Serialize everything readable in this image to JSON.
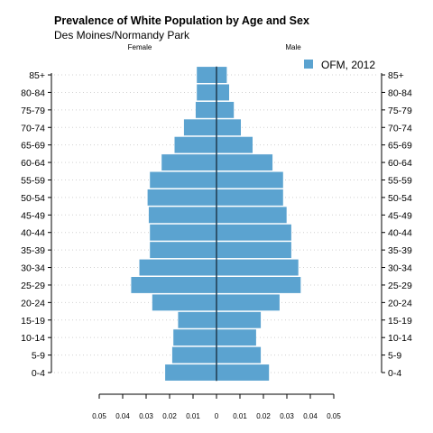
{
  "chart_data": {
    "type": "bar",
    "orientation": "horizontal-population-pyramid",
    "title": "Prevalence of White Population by Age and Sex",
    "subtitle": "Des Moines/Normandy Park",
    "left_label": "Female",
    "right_label": "Male",
    "categories": [
      "0-4",
      "5-9",
      "10-14",
      "15-19",
      "20-24",
      "25-29",
      "30-34",
      "35-39",
      "40-44",
      "45-49",
      "50-54",
      "55-59",
      "60-64",
      "65-69",
      "70-74",
      "75-79",
      "80-84",
      "85+"
    ],
    "series": [
      {
        "name": "Female",
        "values": [
          0.022,
          0.019,
          0.0185,
          0.0165,
          0.0275,
          0.0365,
          0.033,
          0.0285,
          0.0285,
          0.029,
          0.0295,
          0.0285,
          0.0235,
          0.018,
          0.014,
          0.009,
          0.0085,
          0.0085
        ]
      },
      {
        "name": "Male",
        "values": [
          0.0225,
          0.019,
          0.017,
          0.019,
          0.027,
          0.036,
          0.035,
          0.032,
          0.032,
          0.03,
          0.0285,
          0.0285,
          0.024,
          0.0155,
          0.0105,
          0.0075,
          0.0055,
          0.0045
        ]
      }
    ],
    "legend": {
      "label": "OFM, 2012",
      "placement": "top-right"
    },
    "xlim": [
      -0.05,
      0.05
    ],
    "x_ticks": [
      "0.05",
      "0.04",
      "0.03",
      "0.02",
      "0.01",
      "0",
      "0.01",
      "0.02",
      "0.03",
      "0.04",
      "0.05"
    ],
    "grid": "dotted horizontal",
    "bar_color": "#5ba3d0",
    "axis_line_color": "#1f3a4d"
  }
}
